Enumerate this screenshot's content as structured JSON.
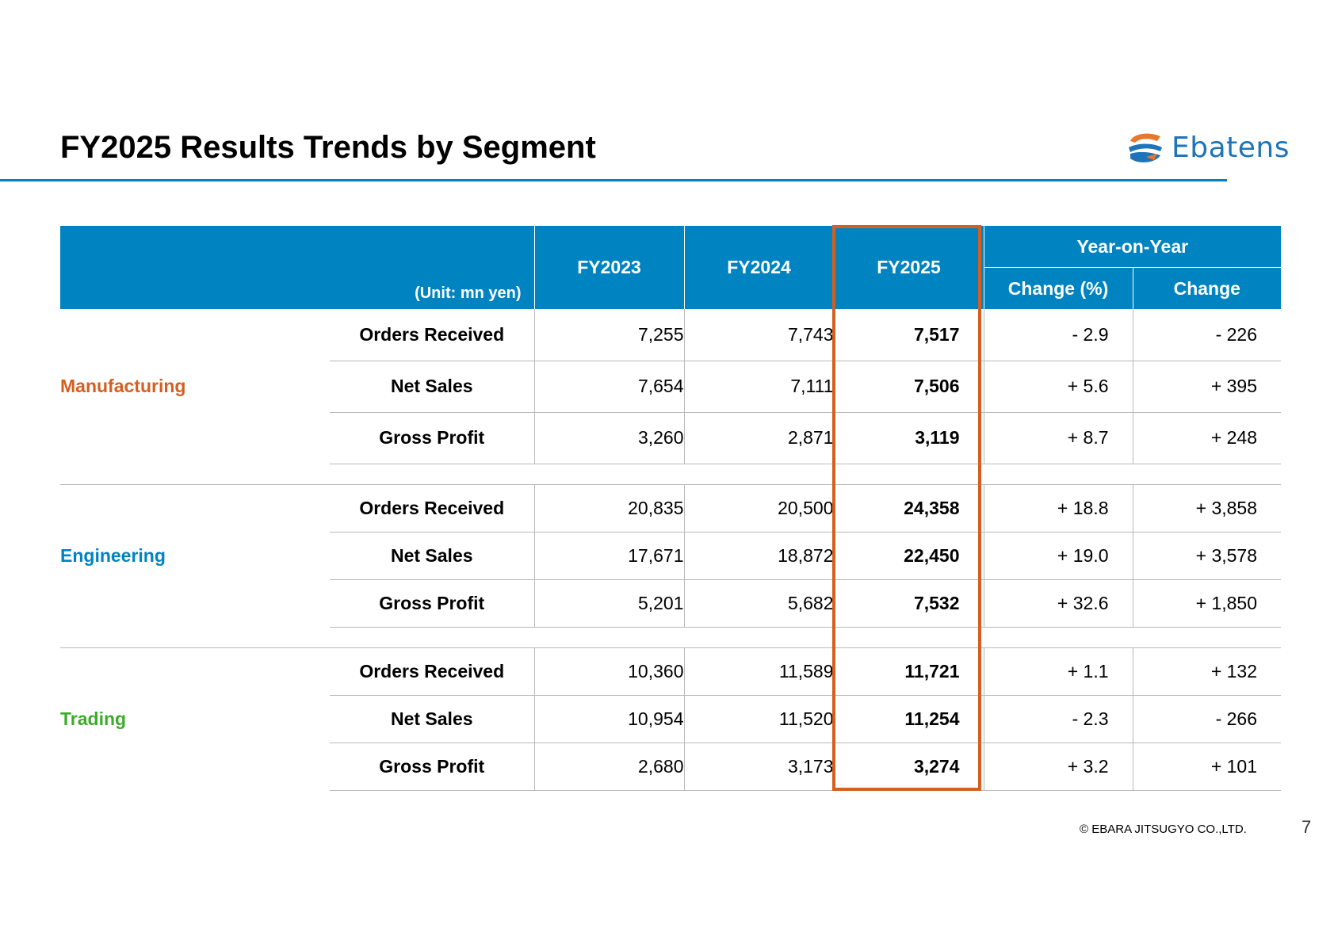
{
  "title": "FY2025 Results Trends by Segment",
  "logo": {
    "text": "Ebatens",
    "mark_icon": "ebatens-logo-mark",
    "colors": {
      "orange": "#e8772a",
      "blue": "#1e74b8"
    }
  },
  "table": {
    "unit": "(Unit: mn yen)",
    "columns": {
      "fy2023": "FY2023",
      "fy2024": "FY2024",
      "fy2025": "FY2025",
      "yoy": "Year-on-Year",
      "change_pct": "Change (%)",
      "change": "Change"
    },
    "segments": [
      {
        "name": "Manufacturing",
        "color": "#d55f1f",
        "rows": [
          {
            "metric": "Orders Received",
            "fy2023": "7,255",
            "fy2024": "7,743",
            "fy2025": "7,517",
            "change_pct": "- 2.9",
            "change": "- 226"
          },
          {
            "metric": "Net Sales",
            "fy2023": "7,654",
            "fy2024": "7,111",
            "fy2025": "7,506",
            "change_pct": "+ 5.6",
            "change": "+ 395"
          },
          {
            "metric": "Gross Profit",
            "fy2023": "3,260",
            "fy2024": "2,871",
            "fy2025": "3,119",
            "change_pct": "+ 8.7",
            "change": "+ 248"
          }
        ]
      },
      {
        "name": "Engineering",
        "color": "#0083c1",
        "rows": [
          {
            "metric": "Orders Received",
            "fy2023": "20,835",
            "fy2024": "20,500",
            "fy2025": "24,358",
            "change_pct": "+ 18.8",
            "change": "+ 3,858"
          },
          {
            "metric": "Net Sales",
            "fy2023": "17,671",
            "fy2024": "18,872",
            "fy2025": "22,450",
            "change_pct": "+ 19.0",
            "change": "+ 3,578"
          },
          {
            "metric": "Gross Profit",
            "fy2023": "5,201",
            "fy2024": "5,682",
            "fy2025": "7,532",
            "change_pct": "+ 32.6",
            "change": "+ 1,850"
          }
        ]
      },
      {
        "name": "Trading",
        "color": "#3cac2a",
        "rows": [
          {
            "metric": "Orders Received",
            "fy2023": "10,360",
            "fy2024": "11,589",
            "fy2025": "11,721",
            "change_pct": "+ 1.1",
            "change": "+ 132"
          },
          {
            "metric": "Net Sales",
            "fy2023": "10,954",
            "fy2024": "11,520",
            "fy2025": "11,254",
            "change_pct": "- 2.3",
            "change": "- 266"
          },
          {
            "metric": "Gross Profit",
            "fy2023": "2,680",
            "fy2024": "3,173",
            "fy2025": "3,274",
            "change_pct": "+ 3.2",
            "change": "+ 101"
          }
        ]
      }
    ]
  },
  "footer": {
    "copyright": "© EBARA JITSUGYO CO.,LTD.",
    "page_number": "7"
  },
  "colors": {
    "header_blue": "#0083c1",
    "highlight_orange": "#d55f1f",
    "rule": "#b9b9b9"
  }
}
